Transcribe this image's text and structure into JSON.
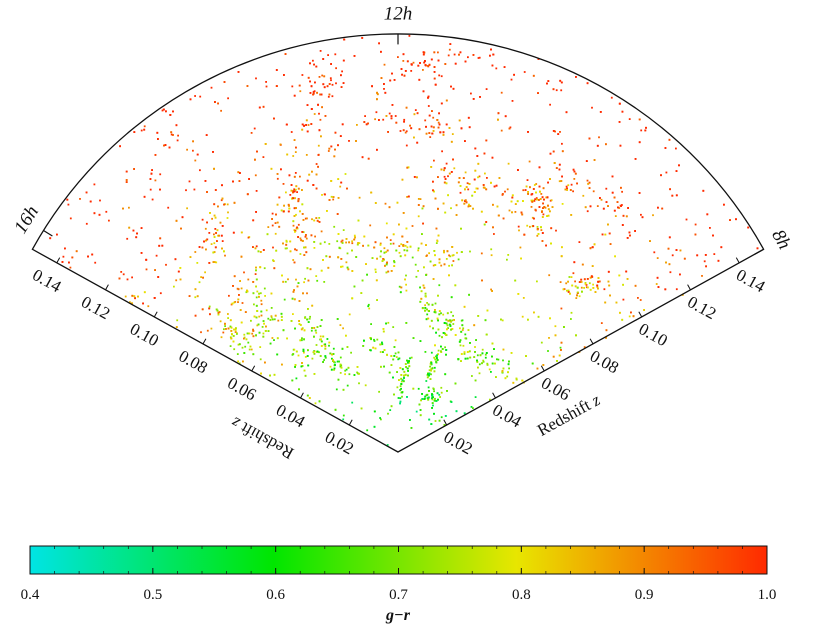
{
  "chart_data": {
    "type": "scatter",
    "subtype": "redshift-wedge",
    "title": "",
    "ra_labels": [
      "8h",
      "12h",
      "16h"
    ],
    "radial_axis_label": "Redshift",
    "radial_axis_symbol": "z",
    "radial_ticks": [
      "0.02",
      "0.04",
      "0.06",
      "0.08",
      "0.10",
      "0.12",
      "0.14"
    ],
    "radial_range": [
      0,
      0.15
    ],
    "angular_range_hours": [
      8,
      16
    ],
    "point_color_variable": "g−r",
    "colorbar": {
      "label": "g−r",
      "range": [
        0.4,
        1.0
      ],
      "ticks": [
        "0.4",
        "0.5",
        "0.6",
        "0.7",
        "0.8",
        "0.9",
        "1.0"
      ],
      "colors": [
        "#00e4e4",
        "#00e600",
        "#e8e600",
        "#ff2a00"
      ]
    }
  }
}
